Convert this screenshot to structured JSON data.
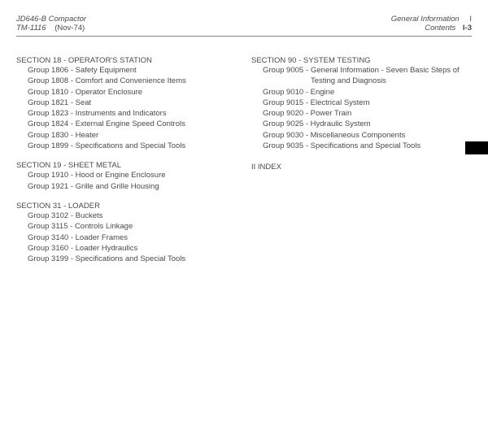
{
  "header": {
    "model": "JD646-B Compactor",
    "tm": "TM-1116",
    "date": "(Nov-74)",
    "gi": "General Information",
    "ginum": "I",
    "contents": "Contents",
    "pagenum": "I-3"
  },
  "left": {
    "s18": {
      "title": "SECTION 18 - OPERATOR'S STATION",
      "g": [
        {
          "n": "Group 1806",
          "d": "Safety Equipment"
        },
        {
          "n": "Group 1808",
          "d": "Comfort and Convenience Items"
        },
        {
          "n": "Group 1810",
          "d": "Operator Enclosure"
        },
        {
          "n": "Group 1821",
          "d": "Seat"
        },
        {
          "n": "Group 1823",
          "d": "Instruments and Indicators"
        },
        {
          "n": "Group 1824",
          "d": "External Engine Speed Controls"
        },
        {
          "n": "Group 1830",
          "d": "Heater"
        },
        {
          "n": "Group 1899",
          "d": "Specifications and Special Tools"
        }
      ]
    },
    "s19": {
      "title": "SECTION 19 - SHEET METAL",
      "g": [
        {
          "n": "Group 1910",
          "d": "Hood or Engine Enclosure"
        },
        {
          "n": "Group 1921",
          "d": "Grille and Grille Housing"
        }
      ]
    },
    "s31": {
      "title": "SECTION 31 - LOADER",
      "g": [
        {
          "n": "Group 3102",
          "d": "Buckets"
        },
        {
          "n": "Group 3115",
          "d": "Controls Linkage"
        },
        {
          "n": "Group 3140",
          "d": "Loader Frames"
        },
        {
          "n": "Group 3160",
          "d": "Loader Hydraulics"
        },
        {
          "n": "Group 3199",
          "d": "Specifications and Special Tools"
        }
      ]
    }
  },
  "right": {
    "s90": {
      "title": "SECTION 90 - SYSTEM TESTING",
      "g": [
        {
          "n": "Group 9005",
          "d": "General Information - Seven Basic Steps of Testing and Diagnosis",
          "wrap": true
        },
        {
          "n": "Group 9010",
          "d": "Engine"
        },
        {
          "n": "Group 9015",
          "d": "Electrical System"
        },
        {
          "n": "Group 9020",
          "d": "Power Train"
        },
        {
          "n": "Group 9025",
          "d": "Hydraulic System"
        },
        {
          "n": "Group 9030",
          "d": "Miscellaneous Components"
        },
        {
          "n": "Group 9035",
          "d": "Specifications and Special Tools"
        }
      ]
    },
    "index": "II INDEX"
  }
}
